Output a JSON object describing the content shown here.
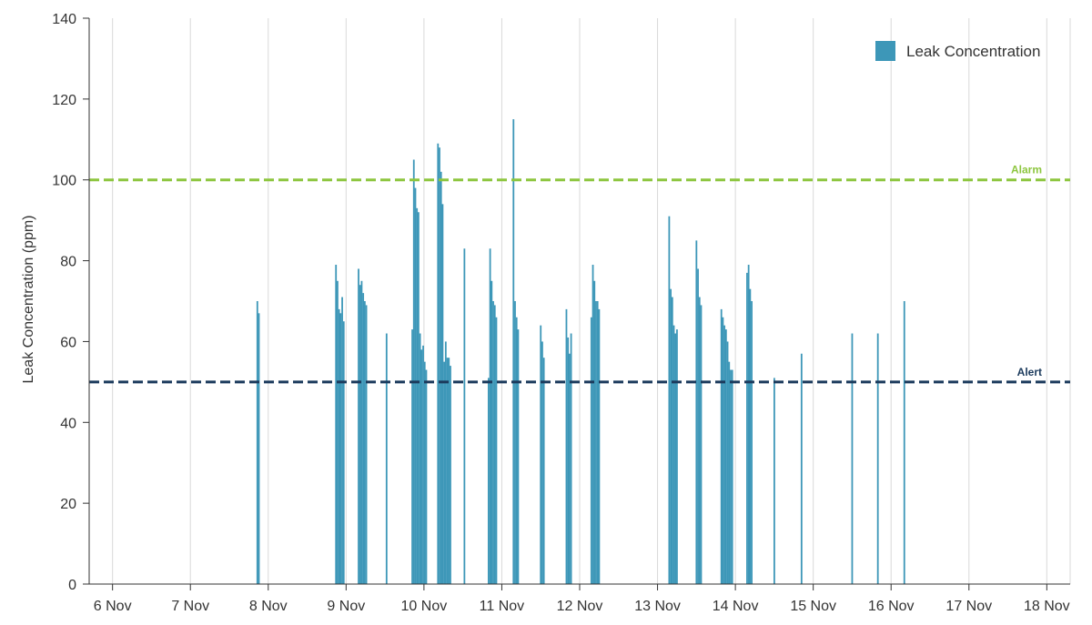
{
  "chart_data": {
    "type": "bar",
    "title": "",
    "xlabel": "",
    "ylabel": "Leak Concentration (ppm)",
    "ylim": [
      0,
      140
    ],
    "yticks": [
      0,
      20,
      40,
      60,
      80,
      100,
      120,
      140
    ],
    "xlim": [
      5.7,
      18.3
    ],
    "xticks": [
      {
        "v": 6,
        "label": "6 Nov"
      },
      {
        "v": 7,
        "label": "7 Nov"
      },
      {
        "v": 8,
        "label": "8 Nov"
      },
      {
        "v": 9,
        "label": "9 Nov"
      },
      {
        "v": 10,
        "label": "10 Nov"
      },
      {
        "v": 11,
        "label": "11 Nov"
      },
      {
        "v": 12,
        "label": "12 Nov"
      },
      {
        "v": 13,
        "label": "13 Nov"
      },
      {
        "v": 14,
        "label": "14 Nov"
      },
      {
        "v": 15,
        "label": "15 Nov"
      },
      {
        "v": 16,
        "label": "16 Nov"
      },
      {
        "v": 17,
        "label": "17 Nov"
      },
      {
        "v": 18,
        "label": "18 Nov"
      }
    ],
    "grid": true,
    "legend_position": "top-right",
    "bar_color": "#3d97b8",
    "series": [
      {
        "name": "Leak Concentration",
        "points": [
          [
            7.86,
            70
          ],
          [
            7.88,
            67
          ],
          [
            8.87,
            79
          ],
          [
            8.89,
            75
          ],
          [
            8.91,
            68
          ],
          [
            8.93,
            67
          ],
          [
            8.95,
            71
          ],
          [
            8.97,
            65
          ],
          [
            9.16,
            78
          ],
          [
            9.18,
            74
          ],
          [
            9.2,
            75
          ],
          [
            9.22,
            72
          ],
          [
            9.24,
            70
          ],
          [
            9.26,
            69
          ],
          [
            9.52,
            62
          ],
          [
            9.85,
            63
          ],
          [
            9.87,
            105
          ],
          [
            9.89,
            98
          ],
          [
            9.91,
            93
          ],
          [
            9.93,
            92
          ],
          [
            9.95,
            62
          ],
          [
            9.97,
            58
          ],
          [
            9.99,
            59
          ],
          [
            10.01,
            55
          ],
          [
            10.03,
            53
          ],
          [
            10.18,
            109
          ],
          [
            10.2,
            108
          ],
          [
            10.22,
            102
          ],
          [
            10.24,
            94
          ],
          [
            10.26,
            55
          ],
          [
            10.28,
            60
          ],
          [
            10.3,
            56
          ],
          [
            10.32,
            56
          ],
          [
            10.34,
            54
          ],
          [
            10.52,
            83
          ],
          [
            10.83,
            51
          ],
          [
            10.85,
            83
          ],
          [
            10.87,
            75
          ],
          [
            10.89,
            70
          ],
          [
            10.91,
            69
          ],
          [
            10.93,
            66
          ],
          [
            11.15,
            115
          ],
          [
            11.17,
            70
          ],
          [
            11.19,
            66
          ],
          [
            11.21,
            63
          ],
          [
            11.5,
            64
          ],
          [
            11.52,
            60
          ],
          [
            11.54,
            56
          ],
          [
            11.83,
            68
          ],
          [
            11.85,
            61
          ],
          [
            11.87,
            57
          ],
          [
            11.89,
            62
          ],
          [
            12.15,
            66
          ],
          [
            12.17,
            79
          ],
          [
            12.19,
            75
          ],
          [
            12.21,
            70
          ],
          [
            12.23,
            70
          ],
          [
            12.25,
            68
          ],
          [
            13.15,
            91
          ],
          [
            13.17,
            73
          ],
          [
            13.19,
            71
          ],
          [
            13.21,
            64
          ],
          [
            13.23,
            62
          ],
          [
            13.25,
            63
          ],
          [
            13.5,
            85
          ],
          [
            13.52,
            78
          ],
          [
            13.54,
            71
          ],
          [
            13.56,
            69
          ],
          [
            13.82,
            68
          ],
          [
            13.84,
            66
          ],
          [
            13.86,
            64
          ],
          [
            13.88,
            63
          ],
          [
            13.9,
            60
          ],
          [
            13.92,
            55
          ],
          [
            13.94,
            53
          ],
          [
            13.96,
            53
          ],
          [
            14.15,
            77
          ],
          [
            14.17,
            79
          ],
          [
            14.19,
            73
          ],
          [
            14.21,
            70
          ],
          [
            14.5,
            51
          ],
          [
            14.85,
            57
          ],
          [
            15.5,
            62
          ],
          [
            15.83,
            62
          ],
          [
            16.17,
            70
          ]
        ]
      }
    ],
    "reference_lines": [
      {
        "name": "Alarm",
        "value": 100,
        "color": "#8dc63f"
      },
      {
        "name": "Alert",
        "value": 50,
        "color": "#1b3a5c"
      }
    ]
  }
}
